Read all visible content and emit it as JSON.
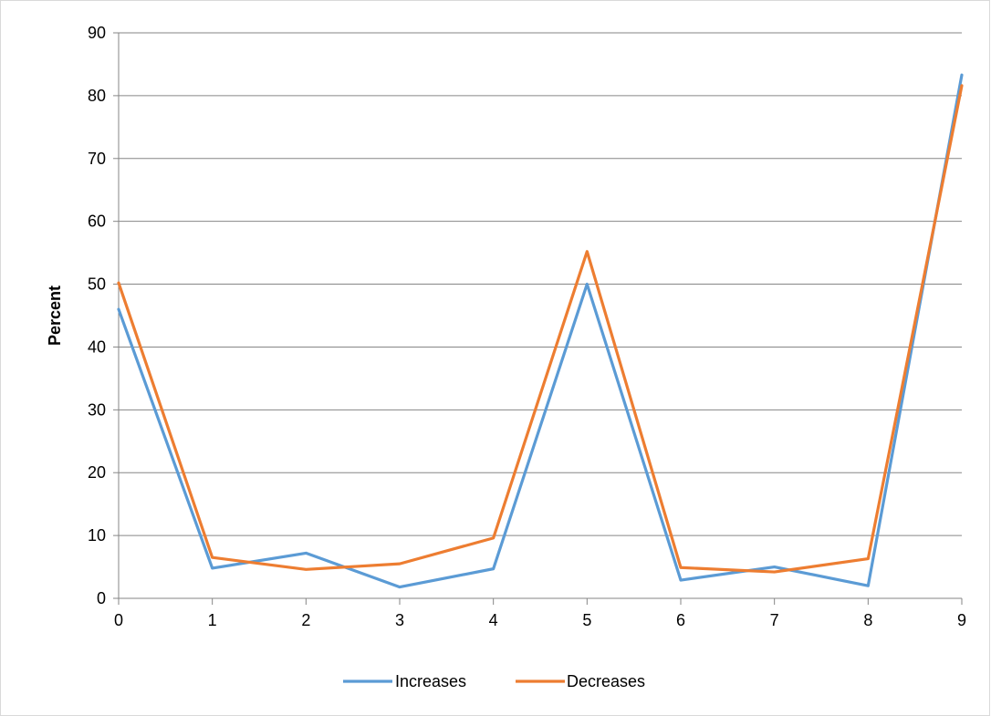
{
  "chart_data": {
    "type": "line",
    "title": "",
    "xlabel": "",
    "ylabel": "Percent",
    "x": [
      0,
      1,
      2,
      3,
      4,
      5,
      6,
      7,
      8,
      9
    ],
    "xlim": [
      0,
      9
    ],
    "ylim": [
      0,
      90
    ],
    "yticks": [
      0,
      10,
      20,
      30,
      40,
      50,
      60,
      70,
      80,
      90
    ],
    "grid": true,
    "legend_position": "bottom",
    "series": [
      {
        "name": "Increases",
        "color": "#5B9BD5",
        "values": [
          46,
          4.8,
          7.2,
          1.8,
          4.7,
          50,
          2.9,
          5.0,
          2.0,
          83.3
        ]
      },
      {
        "name": "Decreases",
        "color": "#ED7D31",
        "values": [
          50.2,
          6.5,
          4.6,
          5.5,
          9.6,
          55.2,
          4.9,
          4.2,
          6.3,
          81.6
        ]
      }
    ]
  }
}
